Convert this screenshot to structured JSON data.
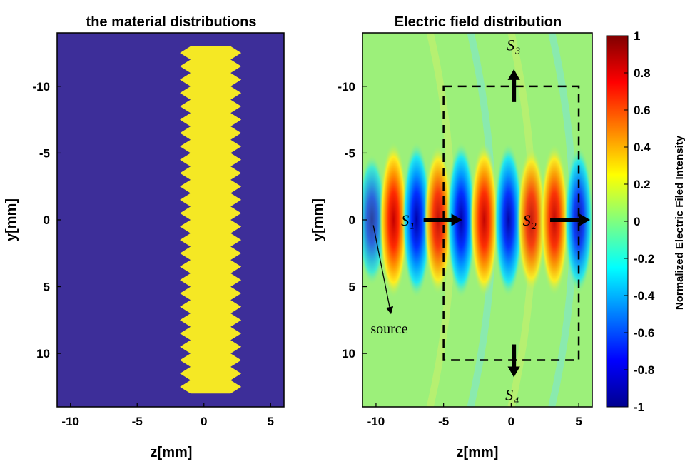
{
  "chart_data": [
    {
      "type": "heatmap",
      "title": "the material distributions",
      "xlabel": "z[mm]",
      "ylabel": "y[mm]",
      "xlim": [
        -11,
        6
      ],
      "ylim": [
        -14,
        14
      ],
      "y_reversed": true,
      "xticks": [
        -10,
        -5,
        0,
        5
      ],
      "yticks": [
        -10,
        -5,
        0,
        5,
        10
      ],
      "background_color": "#3d2e99",
      "material_color": "#f5e824",
      "material": {
        "z_range": [
          -1,
          2
        ],
        "y_range": [
          -13,
          13
        ],
        "serrated_edges": true,
        "teeth_count": 26,
        "teeth_depth": 0.8
      }
    },
    {
      "type": "heatmap",
      "title": "Electric field distribution",
      "xlabel": "z[mm]",
      "ylabel": "y[mm]",
      "xlim": [
        -11,
        6
      ],
      "ylim": [
        -14,
        14
      ],
      "y_reversed": true,
      "xticks": [
        -10,
        -5,
        0,
        5
      ],
      "yticks": [
        -10,
        -5,
        0,
        5,
        10
      ],
      "colorbar": {
        "label": "Normalized Electric Filed Intensity",
        "min": -1,
        "max": 1,
        "ticks": [
          1,
          0.8,
          0.6,
          0.4,
          0.2,
          0,
          -0.2,
          -0.4,
          -0.6,
          -0.8,
          -1
        ],
        "colormap": "jet"
      },
      "field_lobes": [
        {
          "z": -10.3,
          "value": -0.4
        },
        {
          "z": -8.7,
          "value": 1.0
        },
        {
          "z": -7.0,
          "value": -1.0
        },
        {
          "z": -5.4,
          "value": 0.85
        },
        {
          "z": -3.7,
          "value": -1.0
        },
        {
          "z": -2.0,
          "value": 0.95
        },
        {
          "z": -0.2,
          "value": -0.95
        },
        {
          "z": 1.5,
          "value": 0.75
        },
        {
          "z": 3.2,
          "value": 0.9
        },
        {
          "z": 5.0,
          "value": -0.8
        }
      ],
      "integration_box": {
        "z_range": [
          -5,
          5
        ],
        "y_range": [
          -10,
          10.5
        ]
      },
      "annotations": [
        {
          "label": "S",
          "sub": "1",
          "z": -7.5,
          "y": 0
        },
        {
          "label": "S",
          "sub": "2",
          "z": 1.5,
          "y": 0
        },
        {
          "label": "S",
          "sub": "3",
          "z": 0.2,
          "y": -12.7
        },
        {
          "label": "S",
          "sub": "4",
          "z": 0.2,
          "y": 12.2
        },
        {
          "label": "source",
          "z": -10.4,
          "y": 8.3
        }
      ]
    }
  ]
}
